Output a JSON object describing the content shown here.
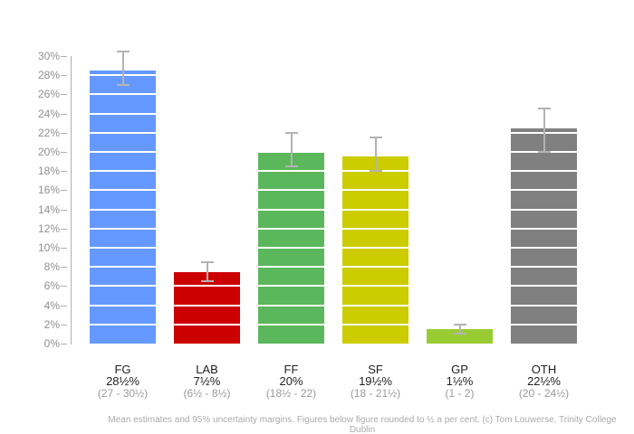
{
  "chart_data": {
    "type": "bar",
    "title": "",
    "categories": [
      "FG",
      "LAB",
      "FF",
      "SF",
      "GP",
      "OTH"
    ],
    "values": [
      28.5,
      7.5,
      20,
      19.5,
      1.5,
      22.5
    ],
    "value_labels": [
      "28½%",
      "7½%",
      "20%",
      "19½%",
      "1½%",
      "22½%"
    ],
    "error_low": [
      27,
      6.5,
      18.5,
      18,
      1,
      20
    ],
    "error_high": [
      30.5,
      8.5,
      22,
      21.5,
      2,
      24.5
    ],
    "range_labels": [
      "(27 - 30½)",
      "(6½ - 8½)",
      "(18½ - 22)",
      "(18 - 21½)",
      "(1 - 2)",
      "(20 - 24½)"
    ],
    "bar_colors": [
      "#6699ff",
      "#cc0000",
      "#5bb75b",
      "#cccc00",
      "#99cc33",
      "#808080"
    ],
    "ylim": [
      0,
      30
    ],
    "ytick_step": 2,
    "ytick_labels": [
      "0%",
      "2%",
      "4%",
      "6%",
      "8%",
      "10%",
      "12%",
      "14%",
      "16%",
      "18%",
      "20%",
      "22%",
      "24%",
      "26%",
      "28%",
      "30%"
    ],
    "grid": "white horizontal lines drawn over bars every 2%",
    "legend": "none",
    "error_bar_color": "#b3b3b3",
    "axis_color": "#b0b0b0",
    "tick_label_color": "#909090"
  },
  "footer": {
    "caption": "Mean estimates and 95% uncertainty margins. Figures below figure rounded to ½ a per cent. (c) Tom Louwerse, Trinity College Dublin"
  }
}
